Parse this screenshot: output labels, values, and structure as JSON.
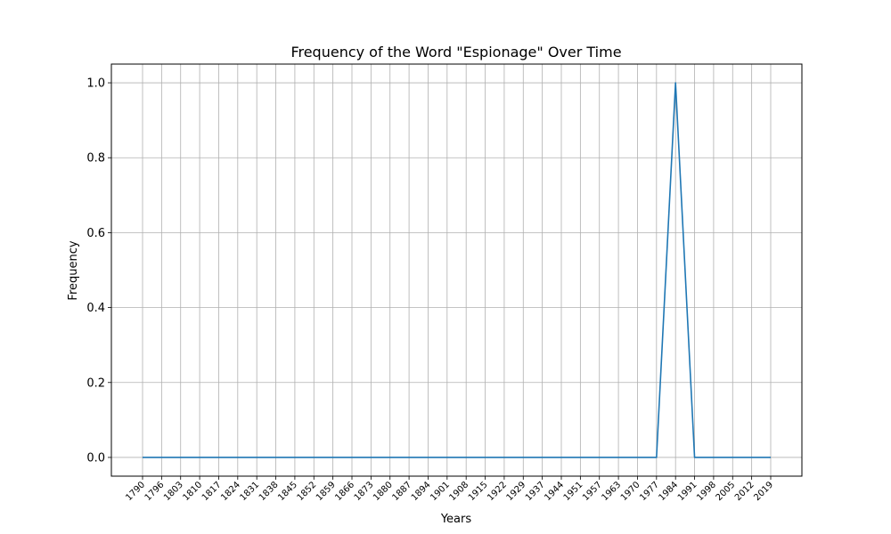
{
  "chart_data": {
    "type": "line",
    "title": "Frequency of the Word \"Espionage\" Over Time",
    "xlabel": "Years",
    "ylabel": "Frequency",
    "x": [
      "1790",
      "1796",
      "1803",
      "1810",
      "1817",
      "1824",
      "1831",
      "1838",
      "1845",
      "1852",
      "1859",
      "1866",
      "1873",
      "1880",
      "1887",
      "1894",
      "1901",
      "1908",
      "1915",
      "1922",
      "1929",
      "1937",
      "1944",
      "1951",
      "1957",
      "1963",
      "1970",
      "1977",
      "1984",
      "1991",
      "1998",
      "2005",
      "2012",
      "2019"
    ],
    "series": [
      {
        "values": [
          0,
          0,
          0,
          0,
          0,
          0,
          0,
          0,
          0,
          0,
          0,
          0,
          0,
          0,
          0,
          0,
          0,
          0,
          0,
          0,
          0,
          0,
          0,
          0,
          0,
          0,
          0,
          0,
          1.0,
          0,
          0,
          0,
          0,
          0
        ]
      }
    ],
    "yticks": [
      0.0,
      0.2,
      0.4,
      0.6,
      0.8,
      1.0
    ],
    "ylim": [
      -0.05,
      1.05
    ],
    "grid": true,
    "line_color": "#1f77b4"
  }
}
